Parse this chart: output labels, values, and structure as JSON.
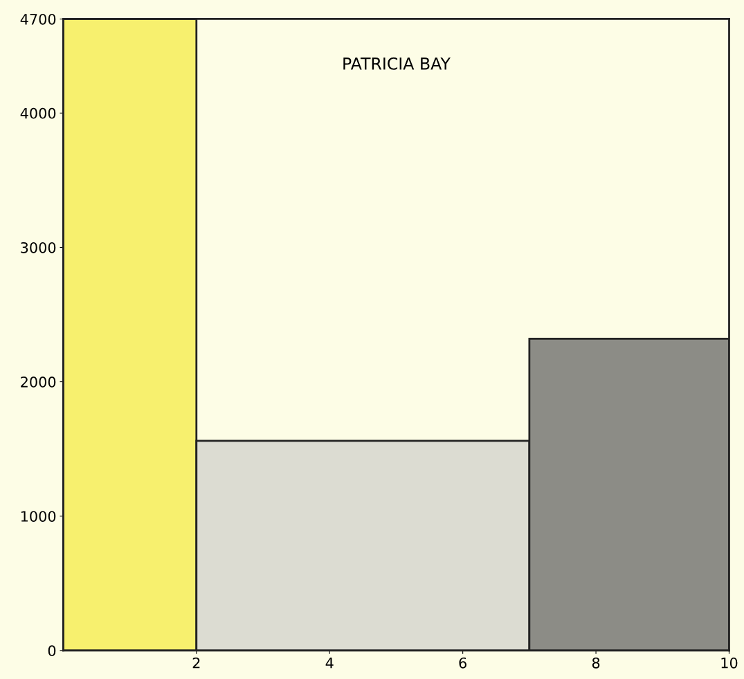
{
  "chart_data": {
    "type": "histogram",
    "title": "PATRICIA BAY",
    "bins": [
      0,
      2,
      7,
      10
    ],
    "values": [
      4700,
      1560,
      2320
    ],
    "colors": [
      "#f7f06e",
      "#dcdcd2",
      "#8c8c86"
    ],
    "xlim": [
      0,
      10
    ],
    "xticks": [
      2,
      4,
      6,
      8,
      10
    ],
    "ylim": [
      0,
      4700
    ],
    "yticks": [
      0,
      1000,
      2000,
      3000,
      4000,
      4700
    ],
    "grid": false
  }
}
